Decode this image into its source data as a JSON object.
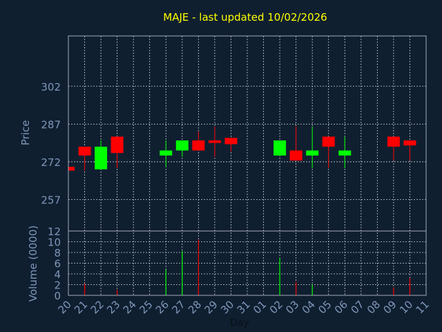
{
  "chart_data": {
    "type": "candlestick",
    "title": "MAJE - last updated 10/02/2026",
    "xlabel": "Day",
    "price_ylabel": "Price",
    "volume_ylabel": "Volume (0000)",
    "price_ylim": [
      244.5,
      322
    ],
    "price_yticks": [
      257,
      272,
      287,
      302
    ],
    "volume_ylim": [
      0,
      12
    ],
    "volume_yticks": [
      0,
      2,
      4,
      6,
      8,
      10,
      12
    ],
    "grid": true,
    "xticks": [
      "20",
      "21",
      "22",
      "23",
      "24",
      "25",
      "26",
      "27",
      "28",
      "29",
      "30",
      "31",
      "01",
      "02",
      "03",
      "04",
      "05",
      "06",
      "07",
      "08",
      "09",
      "10",
      "11"
    ],
    "candles": [
      {
        "day": "20",
        "open": 270.0,
        "close": 268.5,
        "high": 270.0,
        "low": 268.5,
        "volume": 0.0
      },
      {
        "day": "21",
        "open": 278.0,
        "close": 274.5,
        "high": 278.0,
        "low": 268.5,
        "volume": 2.2
      },
      {
        "day": "22",
        "open": 269.0,
        "close": 278.0,
        "high": 280.5,
        "low": 269.0,
        "volume": 0.0
      },
      {
        "day": "23",
        "open": 282.0,
        "close": 275.5,
        "high": 282.0,
        "low": 269.5,
        "volume": 1.0
      },
      {
        "day": "26",
        "open": 274.5,
        "close": 276.5,
        "high": 280.5,
        "low": 270.0,
        "volume": 4.8
      },
      {
        "day": "27",
        "open": 276.5,
        "close": 280.5,
        "high": 280.5,
        "low": 274.0,
        "volume": 8.3
      },
      {
        "day": "28",
        "open": 280.5,
        "close": 276.5,
        "high": 284.0,
        "low": 276.5,
        "volume": 10.4
      },
      {
        "day": "29",
        "open": 280.5,
        "close": 279.5,
        "high": 286.0,
        "low": 274.0,
        "volume": 0.0
      },
      {
        "day": "30",
        "open": 281.5,
        "close": 279.0,
        "high": 281.5,
        "low": 276.0,
        "volume": 0.0
      },
      {
        "day": "02",
        "open": 274.5,
        "close": 280.5,
        "high": 280.5,
        "low": 274.5,
        "volume": 7.0
      },
      {
        "day": "03",
        "open": 276.5,
        "close": 272.5,
        "high": 286.0,
        "low": 272.5,
        "volume": 2.5
      },
      {
        "day": "04",
        "open": 274.5,
        "close": 276.5,
        "high": 286.0,
        "low": 269.5,
        "volume": 2.0
      },
      {
        "day": "05",
        "open": 282.0,
        "close": 278.0,
        "high": 282.0,
        "low": 269.5,
        "volume": 0.0
      },
      {
        "day": "06",
        "open": 274.5,
        "close": 276.5,
        "high": 282.0,
        "low": 269.5,
        "volume": 0.0
      },
      {
        "day": "09",
        "open": 282.0,
        "close": 278.0,
        "high": 282.0,
        "low": 272.5,
        "volume": 1.5
      },
      {
        "day": "10",
        "open": 280.5,
        "close": 278.5,
        "high": 280.5,
        "low": 272.5,
        "volume": 3.2
      }
    ]
  },
  "colors": {
    "background": "#0f1f30",
    "axis": "#a4aab8",
    "grid": "#c8cdd6",
    "title": "#ffff00",
    "label": "#7f97b9",
    "up": "#00ff00",
    "down": "#ff0000"
  }
}
